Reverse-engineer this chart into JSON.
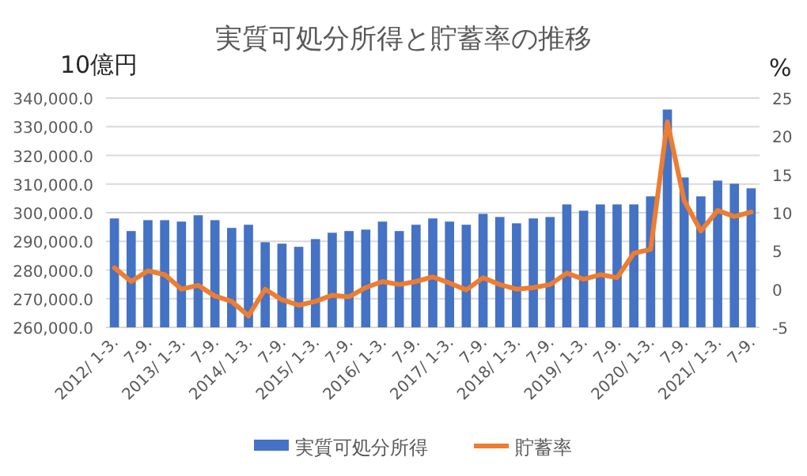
{
  "chart_data": {
    "type": "bar",
    "title": "実質可処分所得と貯蓄率の推移",
    "ylabel": "10億円",
    "y2label": "%",
    "categories": [
      "2012/ 1-3.",
      null,
      "7-9.",
      null,
      "2013/ 1-3.",
      null,
      "7-9.",
      null,
      "2014/ 1-3.",
      null,
      "7-9.",
      null,
      "2015/ 1-3.",
      null,
      "7-9.",
      null,
      "2016/ 1-3.",
      null,
      "7-9.",
      null,
      "2017/ 1-3.",
      null,
      "7-9.",
      null,
      "2018/ 1-3.",
      null,
      "7-9.",
      null,
      "2019/ 1-3.",
      null,
      "7-9.",
      null,
      "2020/ 1-3.",
      null,
      "7-9.",
      null,
      "2021/ 1-3.",
      null,
      "7-9."
    ],
    "series": [
      {
        "name": "実質可処分所得",
        "color": "#4472c4",
        "values": [
          298000,
          293600,
          297400,
          297400,
          296900,
          299100,
          297400,
          294700,
          295800,
          289700,
          289200,
          288100,
          290800,
          293000,
          293600,
          294100,
          296900,
          293600,
          295800,
          298000,
          296900,
          295800,
          299600,
          298500,
          296300,
          298000,
          298500,
          302900,
          300700,
          302900,
          302900,
          302900,
          305700,
          336000,
          312300,
          305700,
          311200,
          310100,
          308500
        ]
      },
      {
        "name": "貯蓄率",
        "type": "line",
        "axis": "y2",
        "color": "#ed7d31",
        "values": [
          2.8,
          1.0,
          2.4,
          1.9,
          0.0,
          0.5,
          -0.9,
          -1.6,
          -3.5,
          0.0,
          -1.4,
          -2.1,
          -1.6,
          -0.8,
          -1.0,
          0.2,
          1.0,
          0.6,
          1.0,
          1.6,
          0.8,
          -0.1,
          1.5,
          0.6,
          0.0,
          0.2,
          0.6,
          2.1,
          1.3,
          1.9,
          1.5,
          4.7,
          5.2,
          21.9,
          11.6,
          7.6,
          10.3,
          9.5,
          10.1
        ]
      }
    ],
    "ylim": [
      260000,
      340000
    ],
    "yticks": [
      {
        "value": 260000,
        "label": "260,000.0"
      },
      {
        "value": 270000,
        "label": "270,000.0"
      },
      {
        "value": 280000,
        "label": "280,000.0"
      },
      {
        "value": 290000,
        "label": "290,000.0"
      },
      {
        "value": 300000,
        "label": "300,000.0"
      },
      {
        "value": 310000,
        "label": "310,000.0"
      },
      {
        "value": 320000,
        "label": "320,000.0"
      },
      {
        "value": 330000,
        "label": "330,000.0"
      },
      {
        "value": 340000,
        "label": "340,000.0"
      }
    ],
    "y2lim": [
      -5,
      25
    ],
    "y2ticks": [
      -5,
      0,
      5,
      10,
      15,
      20,
      25
    ],
    "grid": "y",
    "legend": "bottom"
  }
}
